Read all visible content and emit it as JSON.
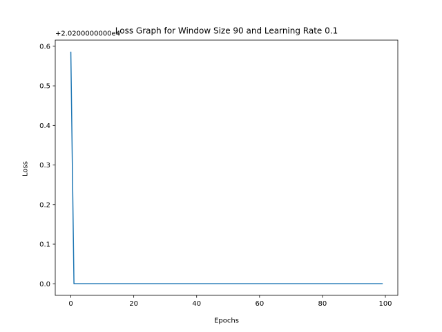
{
  "chart_data": {
    "type": "line",
    "title": "Loss Graph for Window Size 90 and Learning Rate 0.1",
    "xlabel": "Epochs",
    "ylabel": "Loss",
    "y_offset_label": "+2.0200000000e4",
    "xlim": [
      -4.95,
      103.95
    ],
    "ylim": [
      -0.0293,
      0.6155
    ],
    "xticks": [
      0,
      20,
      40,
      60,
      80,
      100
    ],
    "yticks": [
      0.0,
      0.1,
      0.2,
      0.3,
      0.4,
      0.5,
      0.6
    ],
    "ytick_labels": [
      "0.0",
      "0.1",
      "0.2",
      "0.3",
      "0.4",
      "0.5",
      "0.6"
    ],
    "grid": false,
    "legend": "none",
    "series": [
      {
        "color": "#1f77b4",
        "x": [
          0,
          1,
          99
        ],
        "y": [
          0.585,
          0.0,
          0.0
        ]
      }
    ]
  }
}
